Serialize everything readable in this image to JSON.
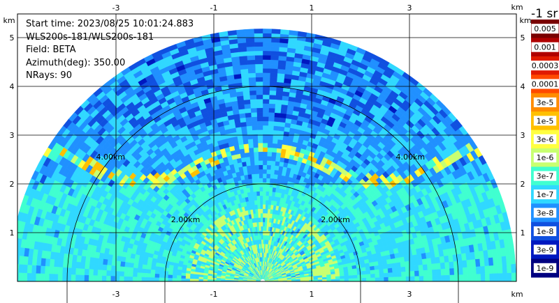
{
  "info": {
    "start_time": "Start time: 2023/08/25 10:01:24.883",
    "instrument": "WLS200s-181/WLS200s-181",
    "field": "Field: BETA",
    "azimuth": "Azimuth(deg): 350.00",
    "nrays": "NRays: 90"
  },
  "colorbar": {
    "title": "-1 sr",
    "labels": [
      "0.005",
      "0.001",
      "0.0003",
      "0.0001",
      "3e-5",
      "1e-5",
      "3e-6",
      "1e-6",
      "3e-7",
      "1e-7",
      "3e-8",
      "1e-8",
      "3e-9",
      "1e-9"
    ],
    "colors": [
      "#7a0000",
      "#b00000",
      "#e01a00",
      "#ff4a00",
      "#ff8c00",
      "#ffc000",
      "#ffff40",
      "#c8ff70",
      "#40ffd0",
      "#30d8ff",
      "#2090ff",
      "#1050e0",
      "#0018c0",
      "#000080"
    ]
  },
  "chart_data": {
    "type": "rhi",
    "field": "BETA",
    "units": "km",
    "x_ticks": [
      "-3",
      "-1",
      "1",
      "3"
    ],
    "y_ticks": [
      "1",
      "2",
      "3",
      "4",
      "5"
    ],
    "x_unit_label": "km",
    "y_unit_label": "km",
    "xlim": [
      -4.25,
      4.0
    ],
    "ylim": [
      0,
      5.6
    ],
    "max_range_km": 5.1,
    "range_rings": [
      {
        "radius_km": 2.0,
        "label": "2.00km"
      },
      {
        "radius_km": 4.0,
        "label": "4.00km"
      }
    ],
    "aerosol_layer_height_km": [
      2.3,
      2.8
    ]
  }
}
